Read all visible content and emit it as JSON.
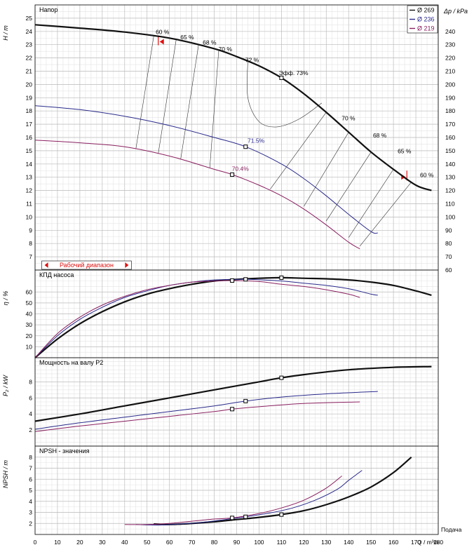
{
  "chart_data": [
    {
      "type": "line",
      "title": "Напор",
      "ylabel": "H / m",
      "ylabel_right": "Δp / kPa",
      "xlim": [
        0,
        180
      ],
      "ylim": [
        6,
        26
      ],
      "y_ticks": [
        7,
        8,
        9,
        10,
        11,
        12,
        13,
        14,
        15,
        16,
        17,
        18,
        19,
        20,
        21,
        22,
        23,
        24,
        25
      ],
      "y_right_ticks": [
        60,
        70,
        80,
        90,
        100,
        110,
        120,
        130,
        140,
        150,
        160,
        170,
        180,
        190,
        200,
        210,
        220,
        230,
        240
      ],
      "grid": true,
      "legend_position": "top-right",
      "legend": [
        {
          "label": "Ø 269",
          "color": "#111111"
        },
        {
          "label": "Ø 236",
          "color": "#2a2a8c"
        },
        {
          "label": "Ø 219",
          "color": "#8a2060"
        }
      ],
      "operating_range_label": "Рабочий диапазон",
      "series": [
        {
          "name": "Ø 269",
          "color": "#111111",
          "width": 2.2,
          "x": [
            0,
            20,
            40,
            60,
            80,
            90,
            100,
            110,
            120,
            130,
            140,
            150,
            160,
            170,
            177
          ],
          "y": [
            24.5,
            24.25,
            23.95,
            23.5,
            22.7,
            22.1,
            21.4,
            20.5,
            19.3,
            17.9,
            16.4,
            14.9,
            13.6,
            12.4,
            12.0
          ]
        },
        {
          "name": "Ø 236",
          "color": "#2a2a8c",
          "width": 1,
          "x": [
            0,
            20,
            40,
            60,
            80,
            94,
            110,
            120,
            130,
            140,
            150,
            153
          ],
          "y": [
            18.4,
            18.1,
            17.6,
            16.9,
            16.0,
            15.3,
            14.0,
            12.9,
            11.6,
            10.2,
            8.9,
            8.8
          ]
        },
        {
          "name": "Ø 219",
          "color": "#8a2060",
          "width": 1,
          "x": [
            0,
            20,
            40,
            60,
            80,
            88,
            100,
            110,
            120,
            130,
            140,
            145
          ],
          "y": [
            15.8,
            15.6,
            15.3,
            14.6,
            13.6,
            13.2,
            12.4,
            11.6,
            10.6,
            9.4,
            8.1,
            7.6
          ]
        }
      ],
      "efficiency_labels": [
        {
          "text": "60 %",
          "x": 57,
          "y": 23.8
        },
        {
          "text": "65 %",
          "x": 68,
          "y": 23.4
        },
        {
          "text": "68 %",
          "x": 78,
          "y": 23.0
        },
        {
          "text": "70 %",
          "x": 85,
          "y": 22.5
        },
        {
          "text": "72 %",
          "x": 97,
          "y": 21.7
        },
        {
          "text": "Эфф. 73%",
          "x": 112,
          "y": 20.7
        },
        {
          "text": "70 %",
          "x": 140,
          "y": 17.3
        },
        {
          "text": "68 %",
          "x": 154,
          "y": 16.0
        },
        {
          "text": "65 %",
          "x": 165,
          "y": 14.8
        },
        {
          "text": "60 %",
          "x": 175,
          "y": 13.0
        },
        {
          "text": "71.5%",
          "x": 98,
          "y": 15.6
        },
        {
          "text": "70.4%",
          "x": 91,
          "y": 13.5
        }
      ],
      "markers": [
        {
          "x": 110,
          "y": 20.5
        },
        {
          "x": 94,
          "y": 15.3
        },
        {
          "x": 88,
          "y": 13.2
        }
      ]
    },
    {
      "type": "line",
      "title": "КПД насоса",
      "ylabel": "η / %",
      "xlim": [
        0,
        180
      ],
      "ylim": [
        0,
        80
      ],
      "y_ticks": [
        10,
        20,
        30,
        40,
        50,
        60
      ],
      "grid": true,
      "series": [
        {
          "name": "Ø 269",
          "color": "#111111",
          "width": 2.2,
          "x": [
            0,
            10,
            20,
            30,
            40,
            50,
            60,
            70,
            80,
            90,
            100,
            110,
            120,
            130,
            140,
            150,
            160,
            170,
            177
          ],
          "y": [
            0,
            17,
            31,
            42,
            51,
            58,
            63,
            67,
            70,
            71.5,
            72.5,
            73,
            72.5,
            72,
            71,
            69,
            66,
            61,
            57
          ]
        },
        {
          "name": "Ø 236",
          "color": "#2a2a8c",
          "width": 1,
          "x": [
            0,
            10,
            20,
            30,
            40,
            50,
            60,
            70,
            80,
            94,
            110,
            120,
            130,
            140,
            150,
            153
          ],
          "y": [
            0,
            20,
            35,
            46,
            55,
            61,
            66,
            69,
            71,
            71.5,
            70,
            68,
            66,
            63,
            58,
            57
          ]
        },
        {
          "name": "Ø 219",
          "color": "#8a2060",
          "width": 1,
          "x": [
            0,
            10,
            20,
            30,
            40,
            50,
            60,
            70,
            80,
            88,
            100,
            110,
            120,
            130,
            140,
            145
          ],
          "y": [
            0,
            22,
            37,
            48,
            56,
            62,
            66,
            69,
            70,
            70.4,
            69.5,
            67,
            65,
            62,
            58,
            55
          ]
        }
      ],
      "markers": [
        {
          "x": 110,
          "y": 73
        },
        {
          "x": 94,
          "y": 71.5
        },
        {
          "x": 88,
          "y": 70.4
        }
      ]
    },
    {
      "type": "line",
      "title": "Мощность на валу P2",
      "ylabel": "P₂ / kW",
      "xlim": [
        0,
        180
      ],
      "ylim": [
        0,
        11
      ],
      "y_ticks": [
        2,
        4,
        6,
        8
      ],
      "grid": true,
      "series": [
        {
          "name": "Ø 269",
          "color": "#111111",
          "width": 2.2,
          "x": [
            0,
            20,
            40,
            60,
            80,
            100,
            110,
            120,
            140,
            160,
            177
          ],
          "y": [
            3.1,
            4.0,
            5.0,
            6.0,
            7.0,
            8.0,
            8.5,
            8.9,
            9.5,
            9.8,
            9.9
          ]
        },
        {
          "name": "Ø 236",
          "color": "#2a2a8c",
          "width": 1,
          "x": [
            0,
            20,
            40,
            60,
            80,
            94,
            110,
            130,
            153
          ],
          "y": [
            2.1,
            2.9,
            3.6,
            4.3,
            5.0,
            5.6,
            6.1,
            6.5,
            6.8
          ]
        },
        {
          "name": "Ø 219",
          "color": "#8a2060",
          "width": 1,
          "x": [
            0,
            20,
            40,
            60,
            80,
            88,
            100,
            120,
            145
          ],
          "y": [
            1.8,
            2.5,
            3.1,
            3.7,
            4.3,
            4.6,
            4.9,
            5.3,
            5.5
          ]
        }
      ],
      "markers": [
        {
          "x": 110,
          "y": 8.5
        },
        {
          "x": 94,
          "y": 5.6
        },
        {
          "x": 88,
          "y": 4.6
        }
      ]
    },
    {
      "type": "line",
      "title": "NPSH - значения",
      "ylabel": "NPSH / m",
      "xlabel": "Q / m³/h",
      "xlabel_right": "Подача",
      "xlim": [
        0,
        180
      ],
      "ylim": [
        1,
        9
      ],
      "x_ticks": [
        0,
        10,
        20,
        30,
        40,
        50,
        60,
        70,
        80,
        90,
        100,
        110,
        120,
        130,
        140,
        150,
        160,
        170,
        180
      ],
      "y_ticks": [
        2,
        3,
        4,
        5,
        6,
        7,
        8
      ],
      "grid": true,
      "series": [
        {
          "name": "Ø 269",
          "color": "#111111",
          "width": 2.2,
          "x": [
            53,
            60,
            70,
            80,
            90,
            100,
            110,
            120,
            130,
            140,
            150,
            160,
            168
          ],
          "y": [
            1.95,
            1.9,
            2.0,
            2.15,
            2.35,
            2.55,
            2.8,
            3.15,
            3.7,
            4.4,
            5.3,
            6.6,
            8.0
          ]
        },
        {
          "name": "Ø 236",
          "color": "#2a2a8c",
          "width": 1,
          "x": [
            45,
            55,
            65,
            75,
            85,
            94,
            105,
            115,
            125,
            135,
            140,
            146
          ],
          "y": [
            1.9,
            1.85,
            1.95,
            2.1,
            2.35,
            2.6,
            2.95,
            3.4,
            4.1,
            5.1,
            5.9,
            6.8
          ]
        },
        {
          "name": "Ø 219",
          "color": "#8a2060",
          "width": 1,
          "x": [
            40,
            50,
            60,
            70,
            80,
            88,
            100,
            110,
            120,
            130,
            137
          ],
          "y": [
            1.9,
            1.9,
            2.0,
            2.2,
            2.4,
            2.5,
            2.9,
            3.4,
            4.1,
            5.2,
            6.3
          ]
        }
      ],
      "markers": [
        {
          "x": 110,
          "y": 2.8
        },
        {
          "x": 94,
          "y": 2.6
        },
        {
          "x": 88,
          "y": 2.5
        }
      ]
    }
  ]
}
